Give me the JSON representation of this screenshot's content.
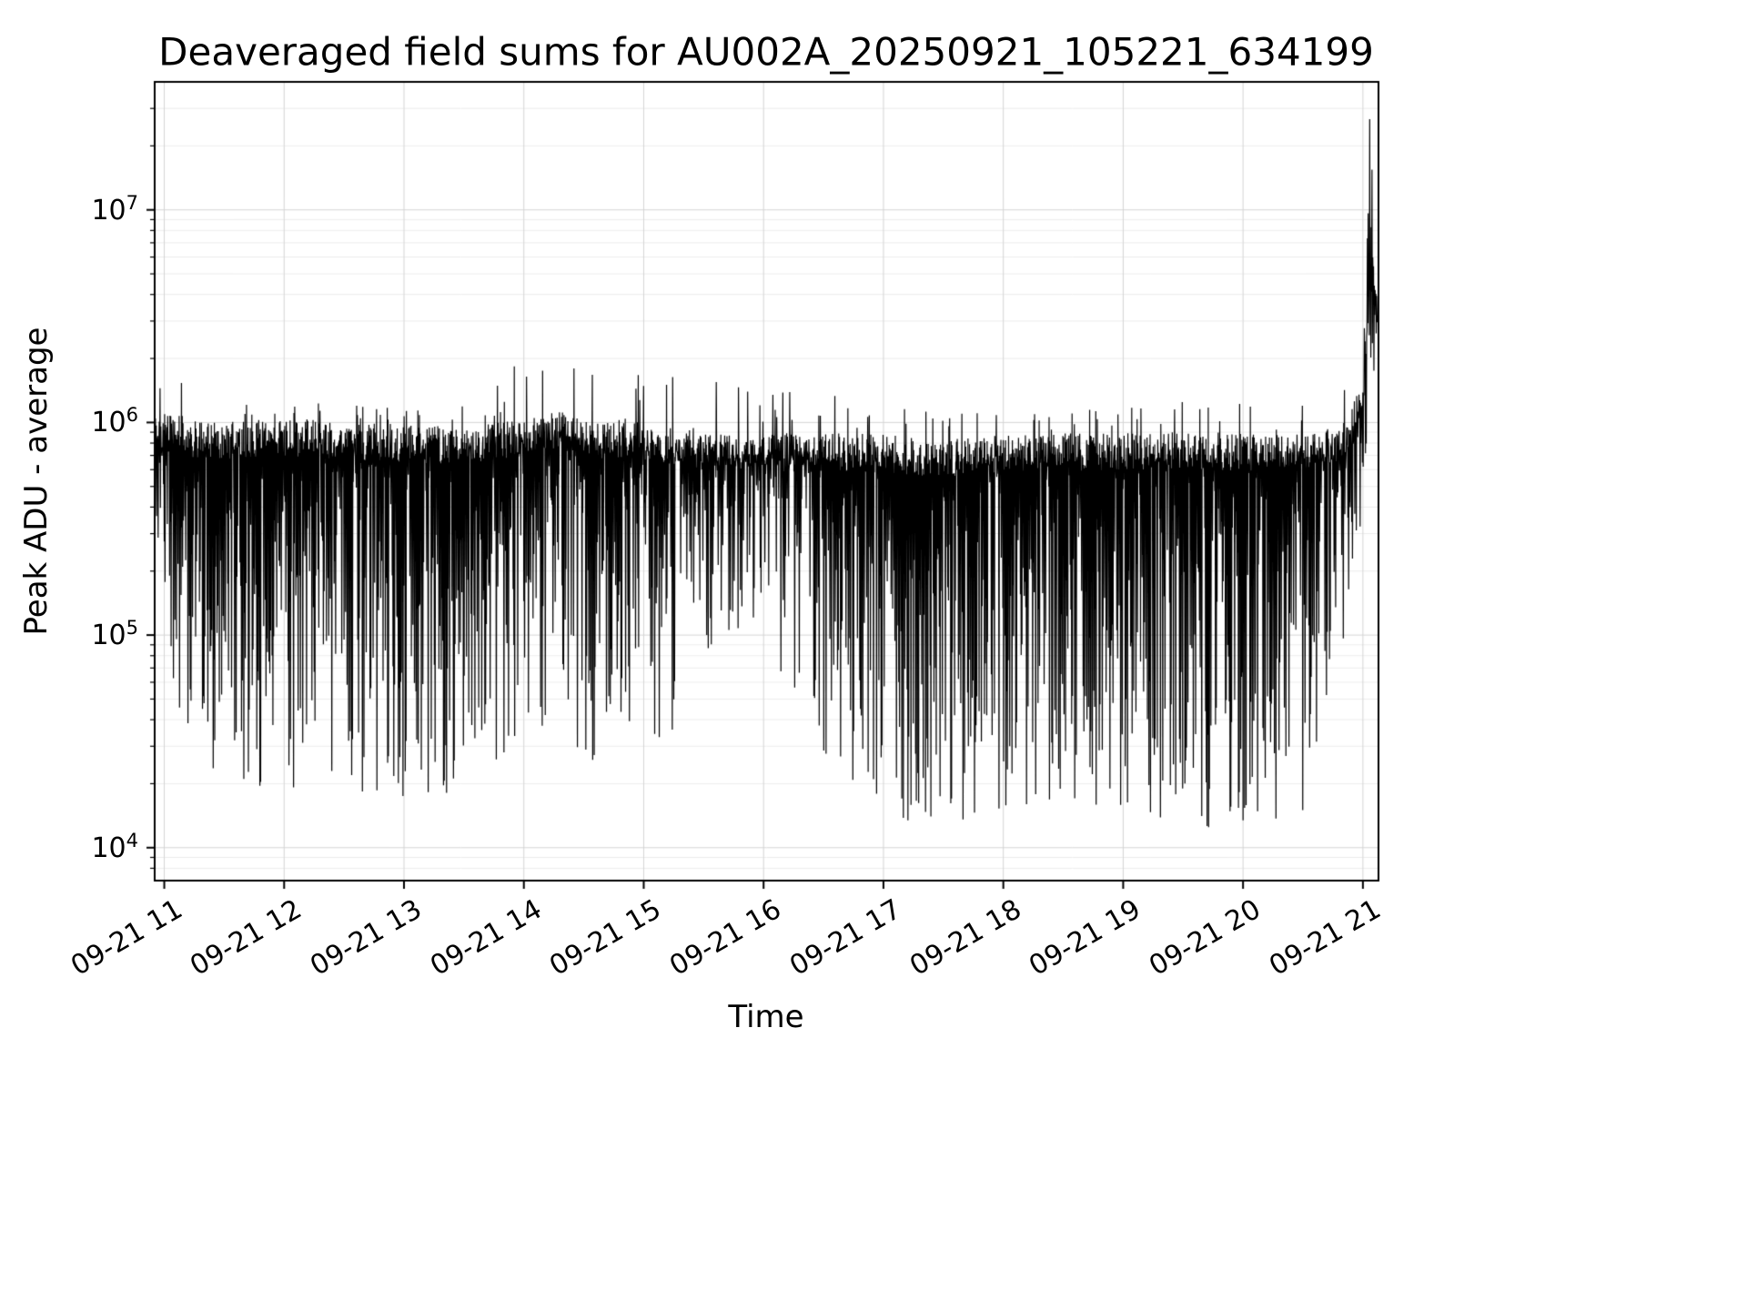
{
  "chart_data": {
    "type": "line",
    "title": "Deaveraged field sums for AU002A_20250921_105221_634199",
    "xlabel": "Time",
    "ylabel": "Peak ADU - average",
    "yscale": "log",
    "ylim": [
      7000,
      40000000
    ],
    "approx_data_range_adu": [
      12000,
      32000000
    ],
    "xlim_hours": [
      10.92,
      21.13
    ],
    "x_tick_hours": [
      11,
      12,
      13,
      14,
      15,
      16,
      17,
      18,
      19,
      20,
      21
    ],
    "x_tick_labels": [
      "09-21 11",
      "09-21 12",
      "09-21 13",
      "09-21 14",
      "09-21 15",
      "09-21 16",
      "09-21 17",
      "09-21 18",
      "09-21 19",
      "09-21 20",
      "09-21 21"
    ],
    "y_tick_exponents": [
      4,
      5,
      6,
      7
    ],
    "grid": true,
    "legend": "none",
    "line_color": "#000000",
    "grid_major_color": "#d4d4d4",
    "grid_minor_color": "#ececec",
    "background": "#ffffff",
    "n_points": 3200,
    "seed": 20250921,
    "envelope_fields": "t=hours on 09-21; hi=log10 extreme upper spikes; top=log10 dense upper band; lo=log10 deepest dips; k=dip skew (higher = fewer deep dips)",
    "envelope": [
      {
        "t": 10.93,
        "hi": 6.15,
        "top": 6.05,
        "lo": 5.5,
        "k": 2.0
      },
      {
        "t": 11.08,
        "hi": 6.25,
        "top": 6.05,
        "lo": 4.7,
        "k": 1.8
      },
      {
        "t": 11.3,
        "hi": 6.1,
        "top": 6.0,
        "lo": 4.28,
        "k": 1.5
      },
      {
        "t": 12.0,
        "hi": 6.1,
        "top": 6.02,
        "lo": 4.26,
        "k": 1.5
      },
      {
        "t": 12.7,
        "hi": 6.08,
        "top": 6.0,
        "lo": 4.24,
        "k": 1.5
      },
      {
        "t": 13.4,
        "hi": 6.05,
        "top": 5.98,
        "lo": 4.2,
        "k": 1.55
      },
      {
        "t": 13.95,
        "hi": 6.28,
        "top": 6.02,
        "lo": 4.45,
        "k": 1.9
      },
      {
        "t": 14.3,
        "hi": 6.32,
        "top": 6.05,
        "lo": 4.55,
        "k": 2.2
      },
      {
        "t": 14.6,
        "hi": 6.25,
        "top": 6.0,
        "lo": 4.35,
        "k": 1.9
      },
      {
        "t": 14.85,
        "hi": 6.34,
        "top": 6.02,
        "lo": 4.55,
        "k": 2.2
      },
      {
        "t": 15.2,
        "hi": 6.22,
        "top": 5.98,
        "lo": 4.5,
        "k": 2.1
      },
      {
        "t": 15.55,
        "hi": 6.2,
        "top": 5.95,
        "lo": 4.95,
        "k": 2.8
      },
      {
        "t": 16.1,
        "hi": 6.18,
        "top": 5.95,
        "lo": 4.9,
        "k": 2.8
      },
      {
        "t": 16.45,
        "hi": 6.15,
        "top": 5.95,
        "lo": 4.35,
        "k": 1.9
      },
      {
        "t": 16.9,
        "hi": 6.08,
        "top": 5.95,
        "lo": 4.15,
        "k": 1.5
      },
      {
        "t": 17.5,
        "hi": 6.05,
        "top": 5.92,
        "lo": 4.1,
        "k": 1.45
      },
      {
        "t": 18.1,
        "hi": 6.08,
        "top": 5.95,
        "lo": 4.12,
        "k": 1.5
      },
      {
        "t": 18.8,
        "hi": 6.08,
        "top": 5.95,
        "lo": 4.18,
        "k": 1.55
      },
      {
        "t": 19.4,
        "hi": 6.1,
        "top": 5.96,
        "lo": 4.12,
        "k": 1.5
      },
      {
        "t": 20.0,
        "hi": 6.12,
        "top": 5.95,
        "lo": 4.06,
        "k": 1.5
      },
      {
        "t": 20.55,
        "hi": 6.1,
        "top": 5.95,
        "lo": 4.15,
        "k": 1.65
      },
      {
        "t": 20.85,
        "hi": 6.2,
        "top": 6.0,
        "lo": 4.8,
        "k": 2.3
      },
      {
        "t": 21.0,
        "hi": 6.55,
        "top": 6.2,
        "lo": 5.6,
        "k": 2.3
      },
      {
        "t": 21.06,
        "hi": 7.5,
        "top": 6.9,
        "lo": 6.1,
        "k": 1.8
      },
      {
        "t": 21.12,
        "hi": 6.9,
        "top": 6.6,
        "lo": 6.3,
        "k": 2.0
      }
    ]
  }
}
